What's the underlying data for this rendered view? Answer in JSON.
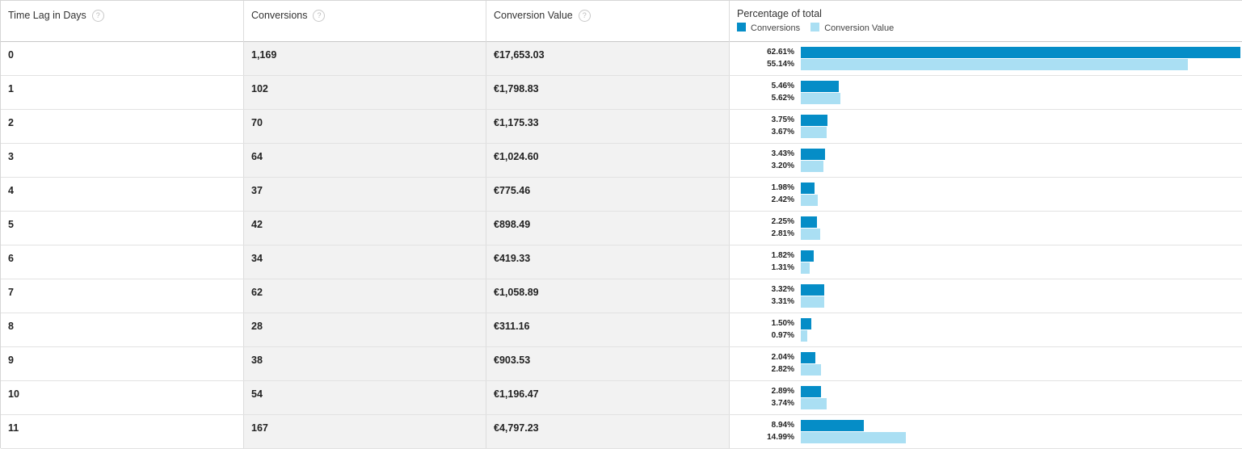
{
  "table": {
    "headers": {
      "time_lag": "Time Lag in Days",
      "conversions": "Conversions",
      "conversion_value": "Conversion Value",
      "percentage": "Percentage of total",
      "help_glyph": "?"
    },
    "legend": {
      "conversions": "Conversions",
      "conversion_value": "Conversion Value"
    },
    "colors": {
      "conversions_bar": "#058dc7",
      "conversion_value_bar": "#aadff3"
    },
    "rows": [
      {
        "day": "0",
        "conversions": "1,169",
        "value": "€17,653.03",
        "conv_pct": "62.61%",
        "val_pct": "55.14%"
      },
      {
        "day": "1",
        "conversions": "102",
        "value": "€1,798.83",
        "conv_pct": "5.46%",
        "val_pct": "5.62%"
      },
      {
        "day": "2",
        "conversions": "70",
        "value": "€1,175.33",
        "conv_pct": "3.75%",
        "val_pct": "3.67%"
      },
      {
        "day": "3",
        "conversions": "64",
        "value": "€1,024.60",
        "conv_pct": "3.43%",
        "val_pct": "3.20%"
      },
      {
        "day": "4",
        "conversions": "37",
        "value": "€775.46",
        "conv_pct": "1.98%",
        "val_pct": "2.42%"
      },
      {
        "day": "5",
        "conversions": "42",
        "value": "€898.49",
        "conv_pct": "2.25%",
        "val_pct": "2.81%"
      },
      {
        "day": "6",
        "conversions": "34",
        "value": "€419.33",
        "conv_pct": "1.82%",
        "val_pct": "1.31%"
      },
      {
        "day": "7",
        "conversions": "62",
        "value": "€1,058.89",
        "conv_pct": "3.32%",
        "val_pct": "3.31%"
      },
      {
        "day": "8",
        "conversions": "28",
        "value": "€311.16",
        "conv_pct": "1.50%",
        "val_pct": "0.97%"
      },
      {
        "day": "9",
        "conversions": "38",
        "value": "€903.53",
        "conv_pct": "2.04%",
        "val_pct": "2.82%"
      },
      {
        "day": "10",
        "conversions": "54",
        "value": "€1,196.47",
        "conv_pct": "2.89%",
        "val_pct": "3.74%"
      },
      {
        "day": "11",
        "conversions": "167",
        "value": "€4,797.23",
        "conv_pct": "8.94%",
        "val_pct": "14.99%"
      }
    ]
  }
}
